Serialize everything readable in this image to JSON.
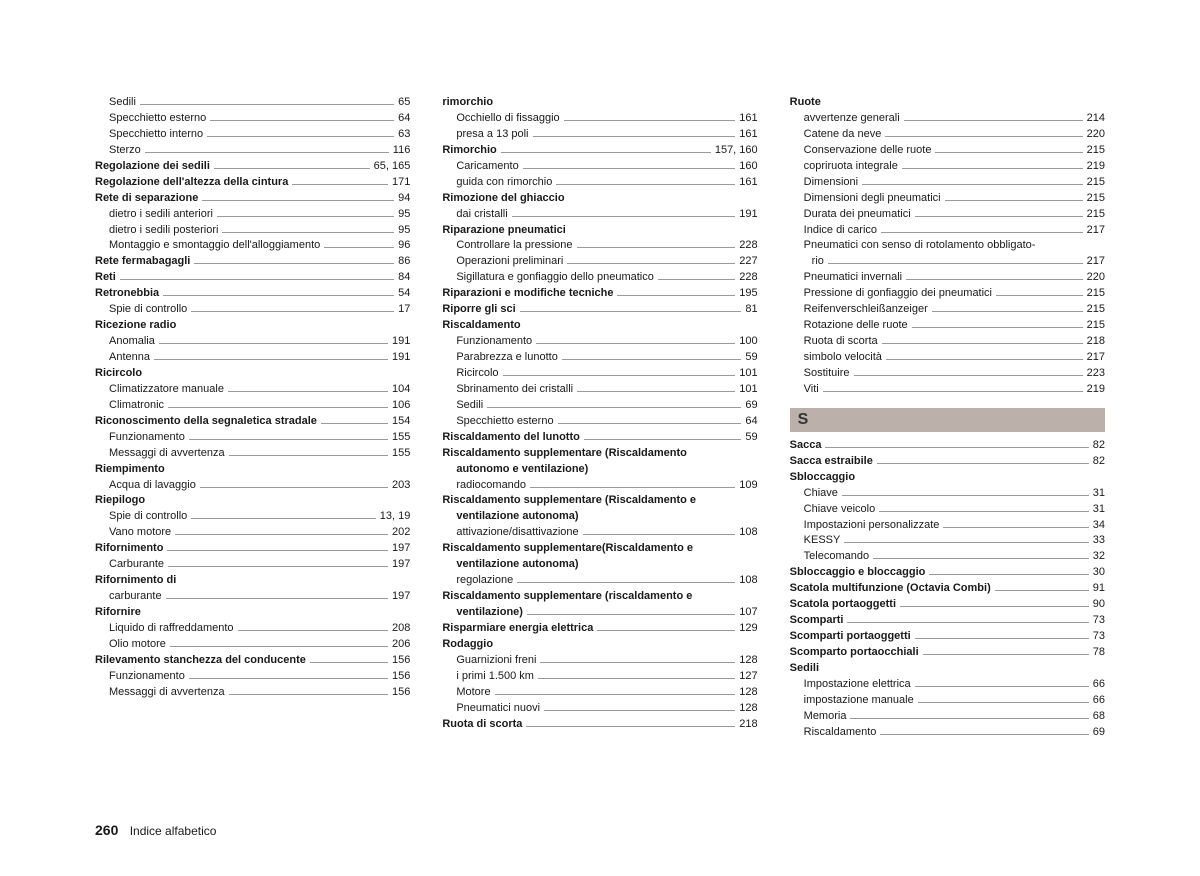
{
  "footer": {
    "page_number": "260",
    "section": "Indice alfabetico"
  },
  "section_header_S": "S",
  "columns": [
    [
      {
        "t": "sub",
        "label": "Sedili",
        "page": "65"
      },
      {
        "t": "sub",
        "label": "Specchietto esterno",
        "page": "64"
      },
      {
        "t": "sub",
        "label": "Specchietto interno",
        "page": "63"
      },
      {
        "t": "sub",
        "label": "Sterzo",
        "page": "116"
      },
      {
        "t": "bold",
        "label": "Regolazione dei sedili",
        "page": "65, 165"
      },
      {
        "t": "bold",
        "label": "Regolazione dell'altezza della cintura",
        "page": "171"
      },
      {
        "t": "bold",
        "label": "Rete di separazione",
        "page": "94"
      },
      {
        "t": "sub",
        "label": "dietro i sedili anteriori",
        "page": "95"
      },
      {
        "t": "sub",
        "label": "dietro i sedili posteriori",
        "page": "95"
      },
      {
        "t": "sub",
        "label": "Montaggio e smontaggio dell'alloggiamento",
        "page": "96"
      },
      {
        "t": "bold",
        "label": "Rete fermabagagli",
        "page": "86"
      },
      {
        "t": "bold",
        "label": "Reti",
        "page": "84"
      },
      {
        "t": "bold",
        "label": "Retronebbia",
        "page": "54"
      },
      {
        "t": "sub",
        "label": "Spie di controllo",
        "page": "17"
      },
      {
        "t": "boldhead",
        "label": "Ricezione radio"
      },
      {
        "t": "sub",
        "label": "Anomalia",
        "page": "191"
      },
      {
        "t": "sub",
        "label": "Antenna",
        "page": "191"
      },
      {
        "t": "boldhead",
        "label": "Ricircolo"
      },
      {
        "t": "sub",
        "label": "Climatizzatore manuale",
        "page": "104"
      },
      {
        "t": "sub",
        "label": "Climatronic",
        "page": "106"
      },
      {
        "t": "bold",
        "label": "Riconoscimento della segnaletica stradale",
        "page": "154"
      },
      {
        "t": "sub",
        "label": "Funzionamento",
        "page": "155"
      },
      {
        "t": "sub",
        "label": "Messaggi di avvertenza",
        "page": "155"
      },
      {
        "t": "boldhead",
        "label": "Riempimento"
      },
      {
        "t": "sub",
        "label": "Acqua di lavaggio",
        "page": "203"
      },
      {
        "t": "boldhead",
        "label": "Riepilogo"
      },
      {
        "t": "sub",
        "label": "Spie di controllo",
        "page": "13, 19"
      },
      {
        "t": "sub",
        "label": "Vano motore",
        "page": "202"
      },
      {
        "t": "bold",
        "label": "Rifornimento",
        "page": "197"
      },
      {
        "t": "sub",
        "label": "Carburante",
        "page": "197"
      },
      {
        "t": "boldhead",
        "label": "Rifornimento di"
      },
      {
        "t": "sub",
        "label": "carburante",
        "page": "197"
      },
      {
        "t": "boldhead",
        "label": "Rifornire"
      },
      {
        "t": "sub",
        "label": "Liquido di raffreddamento",
        "page": "208"
      },
      {
        "t": "sub",
        "label": "Olio motore",
        "page": "206"
      },
      {
        "t": "bold",
        "label": "Rilevamento stanchezza del conducente",
        "page": "156"
      },
      {
        "t": "sub",
        "label": "Funzionamento",
        "page": "156"
      },
      {
        "t": "sub",
        "label": "Messaggi di avvertenza",
        "page": "156"
      }
    ],
    [
      {
        "t": "boldhead",
        "label": "rimorchio"
      },
      {
        "t": "sub",
        "label": "Occhiello di fissaggio",
        "page": "161"
      },
      {
        "t": "sub",
        "label": "presa a 13 poli",
        "page": "161"
      },
      {
        "t": "bold",
        "label": "Rimorchio",
        "page": "157, 160"
      },
      {
        "t": "sub",
        "label": "Caricamento",
        "page": "160"
      },
      {
        "t": "sub",
        "label": "guida con rimorchio",
        "page": "161"
      },
      {
        "t": "boldhead",
        "label": "Rimozione del ghiaccio"
      },
      {
        "t": "sub",
        "label": "dai cristalli",
        "page": "191"
      },
      {
        "t": "boldhead",
        "label": "Riparazione pneumatici"
      },
      {
        "t": "sub",
        "label": "Controllare la pressione",
        "page": "228"
      },
      {
        "t": "sub",
        "label": "Operazioni preliminari",
        "page": "227"
      },
      {
        "t": "sub",
        "label": "Sigillatura e gonfiaggio dello pneumatico",
        "page": "228"
      },
      {
        "t": "bold",
        "label": "Riparazioni e modifiche tecniche",
        "page": "195"
      },
      {
        "t": "bold",
        "label": "Riporre gli sci",
        "page": "81"
      },
      {
        "t": "boldhead",
        "label": "Riscaldamento"
      },
      {
        "t": "sub",
        "label": "Funzionamento",
        "page": "100"
      },
      {
        "t": "sub",
        "label": "Parabrezza e lunotto",
        "page": "59"
      },
      {
        "t": "sub",
        "label": "Ricircolo",
        "page": "101"
      },
      {
        "t": "sub",
        "label": "Sbrinamento dei cristalli",
        "page": "101"
      },
      {
        "t": "sub",
        "label": "Sedili",
        "page": "69"
      },
      {
        "t": "sub",
        "label": "Specchietto esterno",
        "page": "64"
      },
      {
        "t": "bold",
        "label": "Riscaldamento del lunotto",
        "page": "59"
      },
      {
        "t": "boldheadwrap",
        "label": "Riscaldamento supplementare (Riscaldamento",
        "label2": "autonomo e ventilazione)"
      },
      {
        "t": "sub",
        "label": "radiocomando",
        "page": "109"
      },
      {
        "t": "boldheadwrap",
        "label": "Riscaldamento supplementare (Riscaldamento e",
        "label2": "ventilazione autonoma)"
      },
      {
        "t": "sub",
        "label": "attivazione/disattivazione",
        "page": "108"
      },
      {
        "t": "boldheadwrap",
        "label": "Riscaldamento supplementare(Riscaldamento e",
        "label2": "ventilazione autonoma)"
      },
      {
        "t": "sub",
        "label": "regolazione",
        "page": "108"
      },
      {
        "t": "boldwrap",
        "label": "Riscaldamento supplementare (riscaldamento e",
        "label2": "ventilazione)",
        "page": "107"
      },
      {
        "t": "bold",
        "label": "Risparmiare energia elettrica",
        "page": "129"
      },
      {
        "t": "boldhead",
        "label": "Rodaggio"
      },
      {
        "t": "sub",
        "label": "Guarnizioni freni",
        "page": "128"
      },
      {
        "t": "sub",
        "label": "i primi 1.500 km",
        "page": "127"
      },
      {
        "t": "sub",
        "label": "Motore",
        "page": "128"
      },
      {
        "t": "sub",
        "label": "Pneumatici nuovi",
        "page": "128"
      },
      {
        "t": "bold",
        "label": "Ruota di scorta",
        "page": "218"
      }
    ],
    [
      {
        "t": "boldhead",
        "label": "Ruote"
      },
      {
        "t": "sub",
        "label": "avvertenze generali",
        "page": "214"
      },
      {
        "t": "sub",
        "label": "Catene da neve",
        "page": "220"
      },
      {
        "t": "sub",
        "label": "Conservazione delle ruote",
        "page": "215"
      },
      {
        "t": "sub",
        "label": "copriruota integrale",
        "page": "219"
      },
      {
        "t": "sub",
        "label": "Dimensioni",
        "page": "215"
      },
      {
        "t": "sub",
        "label": "Dimensioni degli pneumatici",
        "page": "215"
      },
      {
        "t": "sub",
        "label": "Durata dei pneumatici",
        "page": "215"
      },
      {
        "t": "sub",
        "label": "Indice di carico",
        "page": "217"
      },
      {
        "t": "subwrap",
        "label": "Pneumatici con senso di rotolamento obbligato-",
        "label2": "rio",
        "page": "217"
      },
      {
        "t": "sub",
        "label": "Pneumatici invernali",
        "page": "220"
      },
      {
        "t": "sub",
        "label": "Pressione di gonfiaggio dei pneumatici",
        "page": "215"
      },
      {
        "t": "sub",
        "label": "Reifenverschleißanzeiger",
        "page": "215"
      },
      {
        "t": "sub",
        "label": "Rotazione delle ruote",
        "page": "215"
      },
      {
        "t": "sub",
        "label": "Ruota di scorta",
        "page": "218"
      },
      {
        "t": "sub",
        "label": "simbolo velocità",
        "page": "217"
      },
      {
        "t": "sub",
        "label": "Sostituire",
        "page": "223"
      },
      {
        "t": "sub",
        "label": "Viti",
        "page": "219"
      },
      {
        "t": "section",
        "key": "section_header_S"
      },
      {
        "t": "bold",
        "label": "Sacca",
        "page": "82"
      },
      {
        "t": "bold",
        "label": "Sacca estraibile",
        "page": "82"
      },
      {
        "t": "boldhead",
        "label": "Sbloccaggio"
      },
      {
        "t": "sub",
        "label": "Chiave",
        "page": "31"
      },
      {
        "t": "sub",
        "label": "Chiave veicolo",
        "page": "31"
      },
      {
        "t": "sub",
        "label": "Impostazioni personalizzate",
        "page": "34"
      },
      {
        "t": "sub",
        "label": "KESSY",
        "page": "33"
      },
      {
        "t": "sub",
        "label": "Telecomando",
        "page": "32"
      },
      {
        "t": "bold",
        "label": "Sbloccaggio e bloccaggio",
        "page": "30"
      },
      {
        "t": "bold",
        "label": "Scatola multifunzione (Octavia Combi)",
        "page": "91"
      },
      {
        "t": "bold",
        "label": "Scatola portaoggetti",
        "page": "90"
      },
      {
        "t": "bold",
        "label": "Scomparti",
        "page": "73"
      },
      {
        "t": "bold",
        "label": "Scomparti portaoggetti",
        "page": "73"
      },
      {
        "t": "bold",
        "label": "Scomparto portaocchiali",
        "page": "78"
      },
      {
        "t": "boldhead",
        "label": "Sedili"
      },
      {
        "t": "sub",
        "label": "Impostazione elettrica",
        "page": "66"
      },
      {
        "t": "sub",
        "label": "impostazione manuale",
        "page": "66"
      },
      {
        "t": "sub",
        "label": "Memoria",
        "page": "68"
      },
      {
        "t": "sub",
        "label": "Riscaldamento",
        "page": "69"
      }
    ]
  ]
}
